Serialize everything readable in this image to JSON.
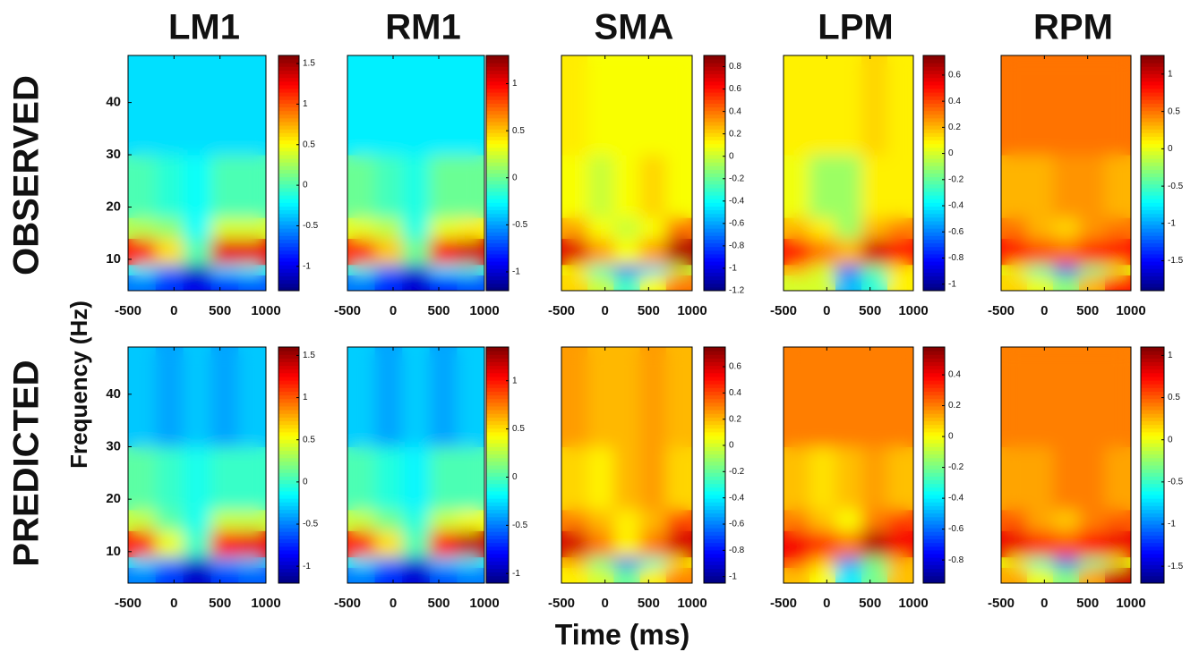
{
  "xlabel": "Time (ms)",
  "ylabel": "Frequency (Hz)",
  "row_labels": [
    "OBSERVED",
    "PREDICTED"
  ],
  "chart_data": [
    {
      "type": "heatmap",
      "title": "LM1",
      "xlim": [
        -500,
        1000
      ],
      "xticks": [
        -500,
        0,
        500,
        1000
      ],
      "ylim": [
        4,
        49
      ],
      "yticks": [
        10,
        20,
        30,
        40
      ],
      "xbins": [
        -500,
        -200,
        100,
        400,
        700,
        1000
      ],
      "ybins": [
        4,
        7,
        9,
        14,
        18,
        30,
        49
      ],
      "clim": [
        -1.3,
        1.6
      ],
      "cticks": [
        -1,
        -0.5,
        0,
        0.5,
        1,
        1.5
      ],
      "z": [
        [
          -0.6,
          -0.8,
          -1.0,
          -0.8,
          -0.7
        ],
        [
          -0.2,
          -0.6,
          -1.2,
          -0.3,
          -0.2
        ],
        [
          1.2,
          0.6,
          0.0,
          1.3,
          1.3
        ],
        [
          0.3,
          0.2,
          -0.2,
          0.4,
          0.4
        ],
        [
          0.0,
          -0.1,
          -0.2,
          0.0,
          0.0
        ],
        [
          -0.3,
          -0.3,
          -0.3,
          -0.3,
          -0.3
        ]
      ]
    },
    {
      "type": "heatmap",
      "title": "RM1",
      "xlim": [
        -500,
        1000
      ],
      "xticks": [
        -500,
        0,
        500,
        1000
      ],
      "ylim": [
        4,
        49
      ],
      "xbins": [
        -500,
        -200,
        100,
        400,
        700,
        1000
      ],
      "ybins": [
        4,
        7,
        9,
        14,
        18,
        30,
        49
      ],
      "clim": [
        -1.2,
        1.3
      ],
      "cticks": [
        -1,
        -0.5,
        0,
        0.5,
        1
      ],
      "z": [
        [
          -0.6,
          -0.8,
          -1.0,
          -0.8,
          -0.7
        ],
        [
          -0.2,
          -0.6,
          -1.0,
          -0.3,
          -0.2
        ],
        [
          0.9,
          0.5,
          0.0,
          1.0,
          1.1
        ],
        [
          0.3,
          0.2,
          -0.2,
          0.3,
          0.4
        ],
        [
          0.0,
          -0.1,
          -0.2,
          0.0,
          0.0
        ],
        [
          -0.3,
          -0.3,
          -0.3,
          -0.3,
          -0.3
        ]
      ]
    },
    {
      "type": "heatmap",
      "title": "SMA",
      "xlim": [
        -500,
        1000
      ],
      "xticks": [
        -500,
        0,
        500,
        1000
      ],
      "ylim": [
        4,
        49
      ],
      "xbins": [
        -500,
        -200,
        100,
        400,
        700,
        1000
      ],
      "ybins": [
        4,
        7,
        9,
        14,
        18,
        30,
        49
      ],
      "clim": [
        -1.2,
        0.9
      ],
      "cticks": [
        -1.2,
        -1,
        -0.8,
        -0.6,
        -0.4,
        -0.2,
        0,
        0.2,
        0.4,
        0.6,
        0.8
      ],
      "z": [
        [
          0.2,
          0.0,
          -0.3,
          0.1,
          0.4
        ],
        [
          0.1,
          -0.3,
          -0.9,
          -0.5,
          0.0
        ],
        [
          0.7,
          0.3,
          0.1,
          0.3,
          0.8
        ],
        [
          0.3,
          0.1,
          0.0,
          0.1,
          0.4
        ],
        [
          0.1,
          0.0,
          0.1,
          0.2,
          0.1
        ],
        [
          0.15,
          0.1,
          0.1,
          0.1,
          0.1
        ]
      ]
    },
    {
      "type": "heatmap",
      "title": "LPM",
      "xlim": [
        -500,
        1000
      ],
      "xticks": [
        -500,
        0,
        500,
        1000
      ],
      "ylim": [
        4,
        49
      ],
      "xbins": [
        -500,
        -200,
        100,
        400,
        700,
        1000
      ],
      "ybins": [
        4,
        7,
        9,
        14,
        18,
        30,
        49
      ],
      "clim": [
        -1.05,
        0.75
      ],
      "cticks": [
        -1,
        -0.8,
        -0.6,
        -0.4,
        -0.2,
        0,
        0.2,
        0.4,
        0.6
      ],
      "z": [
        [
          0.0,
          0.0,
          -0.5,
          -0.3,
          0.1
        ],
        [
          0.2,
          0.0,
          -0.7,
          -0.2,
          0.1
        ],
        [
          0.5,
          0.3,
          0.2,
          0.6,
          0.5
        ],
        [
          0.2,
          0.1,
          -0.1,
          0.2,
          0.3
        ],
        [
          0.05,
          -0.1,
          -0.1,
          0.1,
          0.1
        ],
        [
          0.1,
          0.1,
          0.1,
          0.15,
          0.1
        ]
      ]
    },
    {
      "type": "heatmap",
      "title": "RPM",
      "xlim": [
        -500,
        1000
      ],
      "xticks": [
        -500,
        0,
        500,
        1000
      ],
      "ylim": [
        4,
        49
      ],
      "xbins": [
        -500,
        -200,
        100,
        400,
        700,
        1000
      ],
      "ybins": [
        4,
        7,
        9,
        14,
        18,
        30,
        49
      ],
      "clim": [
        -1.9,
        1.25
      ],
      "cticks": [
        -1.5,
        -1,
        -0.5,
        0,
        0.5,
        1
      ],
      "z": [
        [
          0.2,
          0.0,
          -0.3,
          0.3,
          0.8
        ],
        [
          0.0,
          -0.5,
          -1.4,
          -0.4,
          0.0
        ],
        [
          0.8,
          0.6,
          0.5,
          0.7,
          0.8
        ],
        [
          0.5,
          0.3,
          0.2,
          0.4,
          0.5
        ],
        [
          0.3,
          0.3,
          0.4,
          0.4,
          0.3
        ],
        [
          0.5,
          0.5,
          0.5,
          0.5,
          0.5
        ]
      ]
    },
    {
      "type": "heatmap",
      "xlim": [
        -500,
        1000
      ],
      "xticks": [
        -500,
        0,
        500,
        1000
      ],
      "ylim": [
        4,
        49
      ],
      "yticks": [
        10,
        20,
        30,
        40
      ],
      "xbins": [
        -500,
        -200,
        100,
        400,
        700,
        1000
      ],
      "ybins": [
        4,
        7,
        9,
        14,
        18,
        30,
        49
      ],
      "clim": [
        -1.2,
        1.6
      ],
      "cticks": [
        -1,
        -0.5,
        0,
        0.5,
        1,
        1.5
      ],
      "z": [
        [
          -0.5,
          -0.7,
          -1.0,
          -0.7,
          -0.6
        ],
        [
          -0.2,
          -0.5,
          -1.0,
          -0.4,
          -0.3
        ],
        [
          1.2,
          0.5,
          0.0,
          1.2,
          1.3
        ],
        [
          0.4,
          0.1,
          -0.1,
          0.4,
          0.4
        ],
        [
          0.1,
          0.0,
          -0.1,
          0.0,
          0.0
        ],
        [
          -0.3,
          -0.4,
          -0.3,
          -0.4,
          -0.3
        ]
      ]
    },
    {
      "type": "heatmap",
      "xlim": [
        -500,
        1000
      ],
      "xticks": [
        -500,
        0,
        500,
        1000
      ],
      "ylim": [
        4,
        49
      ],
      "xbins": [
        -500,
        -200,
        100,
        400,
        700,
        1000
      ],
      "ybins": [
        4,
        7,
        9,
        14,
        18,
        30,
        49
      ],
      "clim": [
        -1.1,
        1.35
      ],
      "cticks": [
        -1,
        -0.5,
        0,
        0.5,
        1
      ],
      "z": [
        [
          -0.5,
          -0.7,
          -0.9,
          -0.6,
          -0.5
        ],
        [
          -0.2,
          -0.5,
          -0.9,
          -0.3,
          -0.2
        ],
        [
          1.0,
          0.5,
          0.0,
          1.0,
          1.2
        ],
        [
          0.3,
          0.1,
          -0.1,
          0.3,
          0.4
        ],
        [
          0.0,
          -0.1,
          -0.2,
          0.0,
          0.0
        ],
        [
          -0.3,
          -0.4,
          -0.3,
          -0.4,
          -0.3
        ]
      ]
    },
    {
      "type": "heatmap",
      "xlim": [
        -500,
        1000
      ],
      "xticks": [
        -500,
        0,
        500,
        1000
      ],
      "ylim": [
        4,
        49
      ],
      "xbins": [
        -500,
        -200,
        100,
        400,
        700,
        1000
      ],
      "ybins": [
        4,
        7,
        9,
        14,
        18,
        30,
        49
      ],
      "clim": [
        -1.05,
        0.75
      ],
      "cticks": [
        -1,
        -0.8,
        -0.6,
        -0.4,
        -0.2,
        0,
        0.2,
        0.4,
        0.6
      ],
      "z": [
        [
          0.1,
          0.0,
          -0.2,
          0.1,
          0.3
        ],
        [
          0.2,
          -0.2,
          -0.7,
          -0.3,
          0.1
        ],
        [
          0.6,
          0.3,
          0.1,
          0.3,
          0.6
        ],
        [
          0.3,
          0.2,
          0.1,
          0.2,
          0.4
        ],
        [
          0.15,
          0.1,
          0.2,
          0.25,
          0.15
        ],
        [
          0.25,
          0.2,
          0.2,
          0.25,
          0.2
        ]
      ]
    },
    {
      "type": "heatmap",
      "xlim": [
        -500,
        1000
      ],
      "xticks": [
        -500,
        0,
        500,
        1000
      ],
      "ylim": [
        4,
        49
      ],
      "xbins": [
        -500,
        -200,
        100,
        400,
        700,
        1000
      ],
      "ybins": [
        4,
        7,
        9,
        14,
        18,
        30,
        49
      ],
      "clim": [
        -0.95,
        0.58
      ],
      "cticks": [
        -0.8,
        -0.6,
        -0.4,
        -0.2,
        0,
        0.2,
        0.4
      ],
      "z": [
        [
          0.1,
          0.0,
          -0.4,
          -0.2,
          0.1
        ],
        [
          0.3,
          0.1,
          -0.6,
          -0.2,
          0.1
        ],
        [
          0.4,
          0.3,
          0.2,
          0.5,
          0.4
        ],
        [
          0.2,
          0.1,
          0.0,
          0.2,
          0.3
        ],
        [
          0.1,
          0.05,
          0.1,
          0.15,
          0.1
        ],
        [
          0.2,
          0.2,
          0.2,
          0.2,
          0.2
        ]
      ]
    },
    {
      "type": "heatmap",
      "xlim": [
        -500,
        1000
      ],
      "xticks": [
        -500,
        0,
        500,
        1000
      ],
      "ylim": [
        4,
        49
      ],
      "xbins": [
        -500,
        -200,
        100,
        400,
        700,
        1000
      ],
      "ybins": [
        4,
        7,
        9,
        14,
        18,
        30,
        49
      ],
      "clim": [
        -1.7,
        1.1
      ],
      "cticks": [
        -1.5,
        -1,
        -0.5,
        0,
        0.5,
        1
      ],
      "z": [
        [
          0.3,
          0.0,
          -0.3,
          0.3,
          0.9
        ],
        [
          0.0,
          -0.5,
          -1.2,
          -0.4,
          0.0
        ],
        [
          0.8,
          0.6,
          0.5,
          0.7,
          0.8
        ],
        [
          0.5,
          0.3,
          0.2,
          0.4,
          0.5
        ],
        [
          0.3,
          0.3,
          0.4,
          0.4,
          0.3
        ],
        [
          0.4,
          0.4,
          0.4,
          0.4,
          0.4
        ]
      ]
    }
  ]
}
